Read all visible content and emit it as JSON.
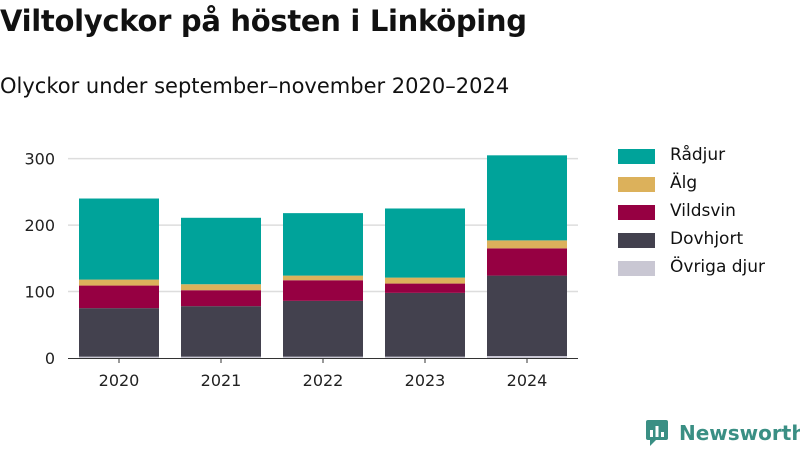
{
  "brand": {
    "name": "Newsworthy",
    "color": "#3a8f84"
  },
  "chart_data": {
    "type": "bar",
    "stacked": true,
    "title": "Viltolyckor på hösten i Linköping",
    "subtitle": "Olyckor under september–november 2020–2024",
    "categories": [
      "2020",
      "2021",
      "2022",
      "2023",
      "2024"
    ],
    "ylim": [
      0,
      310
    ],
    "yticks": [
      0,
      100,
      200,
      300
    ],
    "grid": true,
    "legend_position": "right",
    "series": [
      {
        "name": "Övriga djur",
        "color": "#c9c7d3",
        "values": [
          2,
          2,
          2,
          2,
          3
        ]
      },
      {
        "name": "Dovhjort",
        "color": "#43414e",
        "values": [
          73,
          76,
          84,
          96,
          121
        ]
      },
      {
        "name": "Vildsvin",
        "color": "#960042",
        "values": [
          34,
          24,
          31,
          14,
          41
        ]
      },
      {
        "name": "Älg",
        "color": "#dcb15b",
        "values": [
          9,
          9,
          7,
          9,
          12
        ]
      },
      {
        "name": "Rådjur",
        "color": "#00a39a",
        "values": [
          122,
          100,
          94,
          104,
          128
        ]
      }
    ],
    "legend_order": [
      "Rådjur",
      "Älg",
      "Vildsvin",
      "Dovhjort",
      "Övriga djur"
    ]
  }
}
